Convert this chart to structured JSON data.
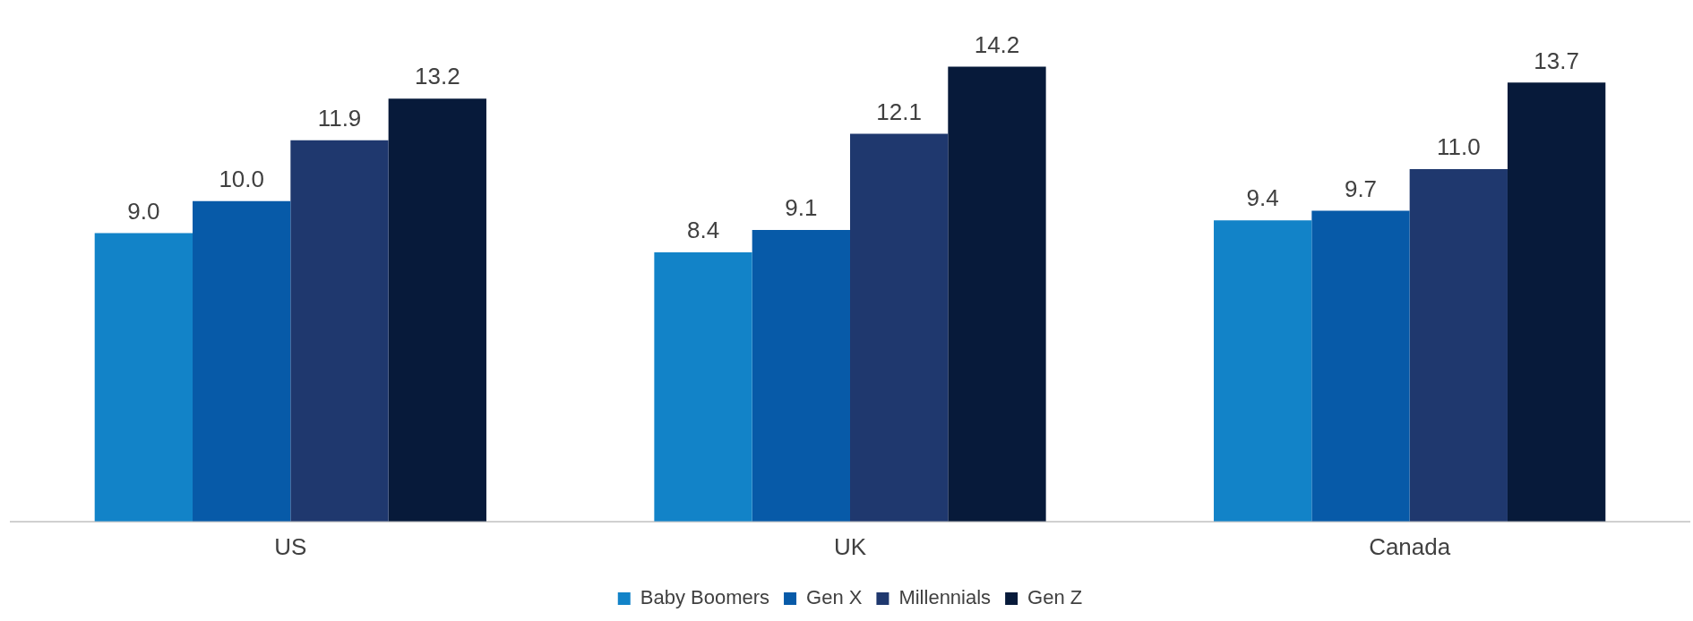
{
  "chart_data": {
    "type": "bar",
    "categories": [
      "US",
      "UK",
      "Canada"
    ],
    "series": [
      {
        "name": "Baby Boomers",
        "color": "#1283c8",
        "values": [
          9.0,
          8.4,
          9.4
        ],
        "value_labels": [
          "9.0",
          "8.4",
          "9.4"
        ]
      },
      {
        "name": "Gen X",
        "color": "#075aa8",
        "values": [
          10.0,
          9.1,
          9.7
        ],
        "value_labels": [
          "10.0",
          "9.1",
          "9.7"
        ]
      },
      {
        "name": "Millennials",
        "color": "#1f386e",
        "values": [
          11.9,
          12.1,
          11.0
        ],
        "value_labels": [
          "11.9",
          "12.1",
          "11.0"
        ]
      },
      {
        "name": "Gen Z",
        "color": "#071a3a",
        "values": [
          13.2,
          14.2,
          13.7
        ],
        "value_labels": [
          "13.2",
          "14.2",
          "13.7"
        ]
      }
    ],
    "legend": "bottom",
    "grid": false
  }
}
